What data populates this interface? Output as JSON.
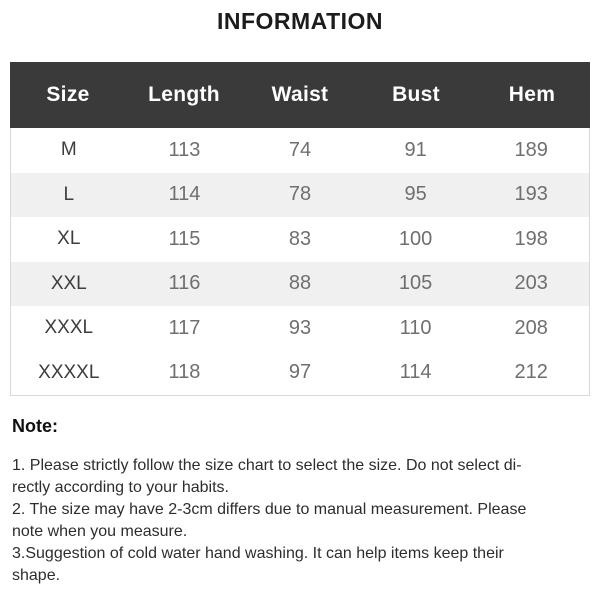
{
  "page": {
    "title": "INFORMATION",
    "background_color": "#ffffff"
  },
  "table": {
    "columns": [
      "Size",
      "Length",
      "Waist",
      "Bust",
      "Hem"
    ],
    "rows": [
      [
        "M",
        "113",
        "74",
        "91",
        "189"
      ],
      [
        "L",
        "114",
        "78",
        "95",
        "193"
      ],
      [
        "XL",
        "115",
        "83",
        "100",
        "198"
      ],
      [
        "XXL",
        "116",
        "88",
        "105",
        "203"
      ],
      [
        "XXXL",
        "117",
        "93",
        "110",
        "208"
      ],
      [
        "XXXXL",
        "118",
        "97",
        "114",
        "212"
      ]
    ],
    "colors": {
      "header_bg": "#3a3a3a",
      "header_text": "#ffffff",
      "alt_row_bg": "#f0f0f0",
      "size_label_text": "#3d3d3d",
      "value_text": "#6f6f6f",
      "body_border": "#d9d9d9"
    }
  },
  "notes": {
    "heading": "Note:",
    "items": [
      "1. Please strictly follow the size chart  to select the size. Do not select di-\nrectly according to your habits.",
      "2. The size may have 2-3cm differs due to manual measurement. Please\nnote when you measure.",
      "3.Suggestion of cold water hand washing. It can help items keep their\nshape."
    ]
  }
}
